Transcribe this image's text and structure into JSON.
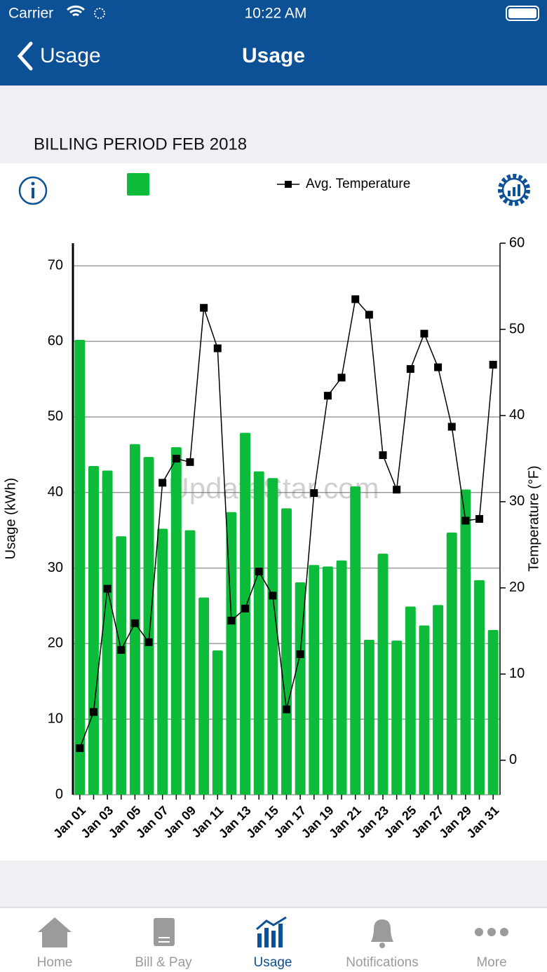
{
  "status_bar": {
    "carrier": "Carrier",
    "time": "10:22 AM"
  },
  "nav": {
    "back": "Usage",
    "title": "Usage"
  },
  "billing_period": "BILLING PERIOD FEB 2018",
  "chart_data": {
    "type": "combo",
    "categories": [
      "Jan 01",
      null,
      "Jan 03",
      null,
      "Jan 05",
      null,
      "Jan 07",
      null,
      "Jan 09",
      null,
      "Jan 11",
      null,
      "Jan 13",
      null,
      "Jan 15",
      null,
      "Jan 17",
      null,
      "Jan 19",
      null,
      "Jan 21",
      null,
      "Jan 23",
      null,
      "Jan 25",
      null,
      "Jan 27",
      null,
      "Jan 29",
      null,
      "Jan 31"
    ],
    "series": [
      {
        "type": "bar",
        "color": "#0dbb3a",
        "values": [
          60.2,
          43.5,
          42.9,
          34.2,
          46.4,
          44.7,
          35.2,
          46.0,
          35.0,
          26.1,
          19.1,
          37.4,
          47.9,
          42.8,
          41.9,
          37.9,
          28.1,
          30.4,
          30.2,
          31.0,
          40.8,
          20.5,
          31.9,
          20.4,
          24.9,
          22.4,
          25.1,
          34.7,
          40.4,
          28.4,
          21.8
        ]
      },
      {
        "type": "line",
        "name": "Avg. Temperature",
        "color": "#000000",
        "axis": "y2",
        "values": [
          1.4,
          5.6,
          19.9,
          12.8,
          15.9,
          13.7,
          32.2,
          35.0,
          34.6,
          52.5,
          47.8,
          16.2,
          17.6,
          21.9,
          19.1,
          5.9,
          12.3,
          31.0,
          42.3,
          44.4,
          53.5,
          51.7,
          35.4,
          31.4,
          45.4,
          49.5,
          45.6,
          38.7,
          27.8,
          28.0,
          45.9
        ]
      }
    ],
    "ylabel": "Usage (kWh)",
    "y2label": "Temperature (°F)",
    "ylim": [
      0,
      73
    ],
    "yticks": [
      0,
      10,
      20,
      30,
      40,
      50,
      60,
      70
    ],
    "y2lim": [
      -4,
      60
    ],
    "y2ticks": [
      0,
      10,
      20,
      30,
      40,
      50,
      60
    ],
    "grid": true,
    "watermark": "UpdateStar.com"
  },
  "tabs": [
    {
      "label": "Home"
    },
    {
      "label": "Bill & Pay"
    },
    {
      "label": "Usage"
    },
    {
      "label": "Notifications"
    },
    {
      "label": "More"
    }
  ],
  "active_tab": 2
}
